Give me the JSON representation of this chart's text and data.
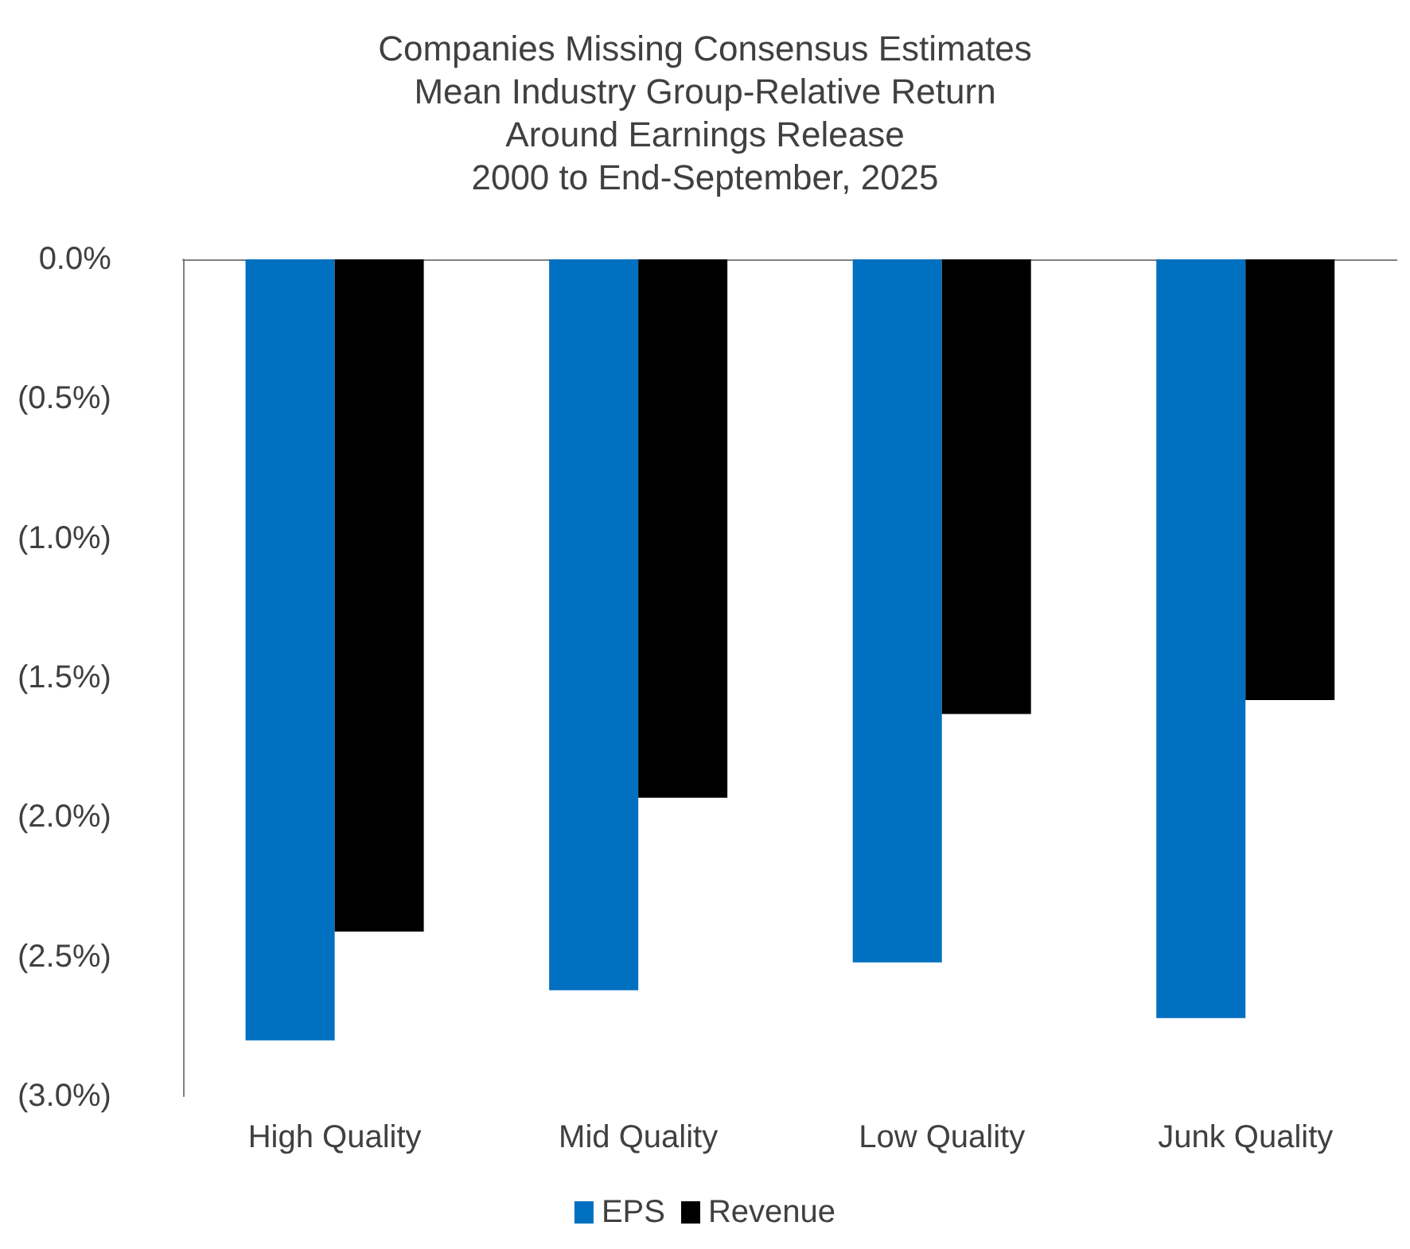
{
  "chart_data": {
    "type": "bar",
    "title": "Companies Missing Consensus Estimates\nMean Industry Group-Relative Return\nAround Earnings Release\n2000 to End-September, 2025",
    "categories": [
      "High Quality",
      "Mid Quality",
      "Low Quality",
      "Junk Quality"
    ],
    "series": [
      {
        "name": "EPS",
        "color": "#0070c0",
        "values": [
          -2.8,
          -2.62,
          -2.52,
          -2.72
        ]
      },
      {
        "name": "Revenue",
        "color": "#000000",
        "values": [
          -2.41,
          -1.93,
          -1.63,
          -1.58
        ]
      }
    ],
    "ylim": [
      -3,
      0
    ],
    "yticks": [
      {
        "value": 0,
        "label": "0.0%"
      },
      {
        "value": -0.5,
        "label": "(0.5%)"
      },
      {
        "value": -1,
        "label": "(1.0%)"
      },
      {
        "value": -1.5,
        "label": "(1.5%)"
      },
      {
        "value": -2,
        "label": "(2.0%)"
      },
      {
        "value": -2.5,
        "label": "(2.5%)"
      },
      {
        "value": -3,
        "label": "(3.0%)"
      }
    ],
    "grid": false,
    "legend": "bottom"
  }
}
